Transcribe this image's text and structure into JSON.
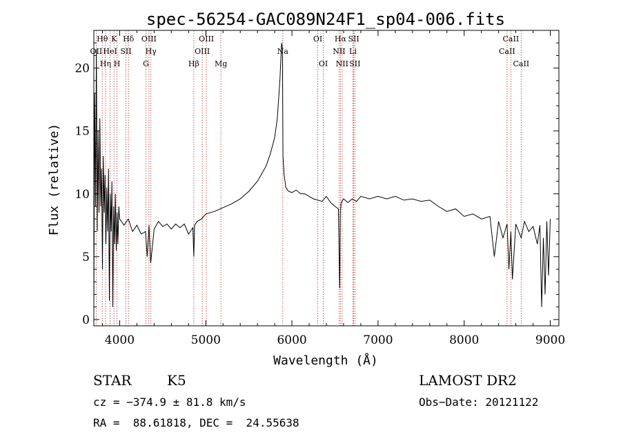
{
  "chart_data": {
    "type": "line",
    "title": "spec-56254-GAC089N24F1_sp04-006.fits",
    "xlabel": "Wavelength (Å)",
    "ylabel": "Flux (relative)",
    "xlim": [
      3700,
      9100
    ],
    "ylim": [
      -0.5,
      23
    ],
    "x_ticks": [
      4000,
      5000,
      6000,
      7000,
      8000,
      9000
    ],
    "y_ticks": [
      0,
      5,
      10,
      15,
      20
    ],
    "grid": false,
    "series": [
      {
        "x": [
          3700,
          3710,
          3720,
          3730,
          3740,
          3750,
          3760,
          3770,
          3780,
          3790,
          3800,
          3810,
          3820,
          3830,
          3840,
          3850,
          3860,
          3870,
          3880,
          3890,
          3900,
          3910,
          3920,
          3930,
          3940,
          3950,
          3960,
          3970,
          3980,
          3990,
          4000,
          4050,
          4100,
          4150,
          4200,
          4250,
          4300,
          4320,
          4340,
          4360,
          4400,
          4450,
          4500,
          4550,
          4600,
          4650,
          4700,
          4750,
          4800,
          4850,
          4861,
          4870,
          4900,
          4950,
          5000,
          5100,
          5200,
          5300,
          5400,
          5500,
          5600,
          5700,
          5750,
          5800,
          5830,
          5860,
          5880,
          5890,
          5896,
          5910,
          5930,
          5960,
          6000,
          6050,
          6100,
          6150,
          6200,
          6250,
          6300,
          6350,
          6400,
          6450,
          6500,
          6540,
          6555,
          6563,
          6570,
          6580,
          6600,
          6650,
          6700,
          6750,
          6800,
          6900,
          7000,
          7100,
          7200,
          7300,
          7400,
          7500,
          7600,
          7700,
          7800,
          7900,
          8000,
          8100,
          8200,
          8300,
          8350,
          8400,
          8450,
          8498,
          8520,
          8542,
          8560,
          8600,
          8662,
          8700,
          8750,
          8800,
          8850,
          8880,
          8900,
          8920,
          8940,
          8960,
          8980,
          9000
        ],
        "y": [
          1.0,
          18.0,
          9.0,
          21.5,
          7.0,
          15.0,
          8.5,
          16.0,
          9.0,
          12.0,
          4.0,
          13.0,
          8.5,
          11.5,
          6.0,
          10.5,
          7.0,
          12.0,
          1.5,
          10.0,
          7.0,
          11.0,
          1.0,
          9.0,
          6.0,
          10.0,
          5.5,
          8.5,
          6.0,
          9.0,
          8.0,
          7.5,
          8.0,
          7.0,
          7.5,
          6.8,
          7.0,
          5.0,
          7.5,
          4.5,
          7.2,
          7.8,
          7.4,
          7.6,
          7.2,
          7.6,
          7.3,
          7.6,
          6.8,
          7.3,
          5.0,
          7.5,
          7.8,
          8.0,
          8.4,
          8.6,
          8.9,
          9.2,
          9.6,
          10.2,
          11.0,
          12.2,
          13.2,
          14.5,
          16.0,
          19.0,
          22.0,
          21.5,
          13.0,
          11.5,
          10.5,
          10.2,
          10.1,
          10.3,
          10.0,
          10.0,
          9.8,
          9.6,
          9.5,
          9.4,
          9.8,
          9.3,
          9.0,
          8.8,
          2.5,
          8.5,
          9.2,
          9.4,
          9.6,
          9.3,
          9.6,
          9.4,
          9.8,
          9.6,
          9.8,
          9.6,
          9.8,
          9.5,
          9.6,
          9.4,
          9.5,
          9.0,
          8.6,
          8.8,
          8.2,
          8.4,
          8.0,
          8.2,
          5.0,
          7.8,
          6.5,
          7.6,
          4.0,
          7.0,
          3.2,
          7.6,
          6.5,
          7.8,
          7.0,
          7.4,
          6.0,
          7.5,
          1.0,
          6.5,
          2.0,
          7.8,
          3.5,
          8.0
        ]
      }
    ],
    "lines": [
      {
        "label": "OII",
        "wl": 3727,
        "row": 2
      },
      {
        "label": "Hθ",
        "wl": 3798,
        "row": 1
      },
      {
        "label": "Hη",
        "wl": 3835,
        "row": 3
      },
      {
        "label": "HeI",
        "wl": 3889,
        "row": 2
      },
      {
        "label": "K",
        "wl": 3934,
        "row": 1
      },
      {
        "label": "H",
        "wl": 3969,
        "row": 3
      },
      {
        "label": "SII",
        "wl": 4072,
        "row": 2
      },
      {
        "label": "Hδ",
        "wl": 4102,
        "row": 1
      },
      {
        "label": "G",
        "wl": 4305,
        "row": 3
      },
      {
        "label": "OIII",
        "wl": 4340,
        "row": 1
      },
      {
        "label": "Hγ",
        "wl": 4363,
        "row": 2
      },
      {
        "label": "Hβ",
        "wl": 4861,
        "row": 3
      },
      {
        "label": "OIII",
        "wl": 4959,
        "row": 2
      },
      {
        "label": "OIII",
        "wl": 5007,
        "row": 1
      },
      {
        "label": "Mg",
        "wl": 5175,
        "row": 3
      },
      {
        "label": "Na",
        "wl": 5894,
        "row": 2
      },
      {
        "label": "OI",
        "wl": 6300,
        "row": 1
      },
      {
        "label": "OI",
        "wl": 6364,
        "row": 3
      },
      {
        "label": "NII",
        "wl": 6548,
        "row": 2
      },
      {
        "label": "Hα",
        "wl": 6563,
        "row": 1
      },
      {
        "label": "NII",
        "wl": 6583,
        "row": 3
      },
      {
        "label": "Li",
        "wl": 6708,
        "row": 2
      },
      {
        "label": "SII",
        "wl": 6717,
        "row": 1
      },
      {
        "label": "SII",
        "wl": 6731,
        "row": 3
      },
      {
        "label": "CaII",
        "wl": 8498,
        "row": 2
      },
      {
        "label": "CaII",
        "wl": 8542,
        "row": 1
      },
      {
        "label": "CaII",
        "wl": 8662,
        "row": 3
      }
    ]
  },
  "info": {
    "class": "STAR",
    "subclass": "K5",
    "survey": "LAMOST DR2",
    "cz": "cz = −374.9 ± 81.8 km/s",
    "obsdate": "Obs−Date: 20121122",
    "radec": "RA =  88.61818, DEC =  24.55638"
  },
  "colors": {
    "line": "#000000",
    "marker": "#b03030"
  }
}
